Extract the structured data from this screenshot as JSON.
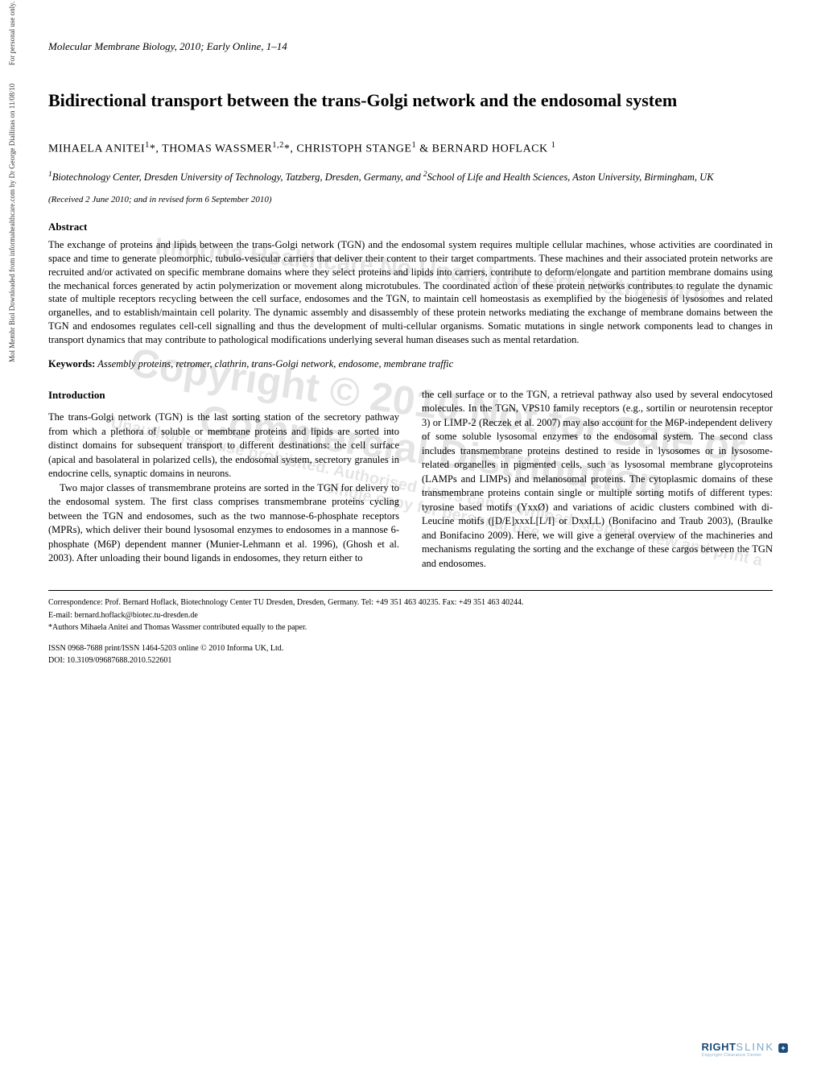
{
  "sidebar": {
    "text": "Mol Membr Biol Downloaded from informahealthcare.com by Dr George Diallinas on 11/08/10          For personal use only."
  },
  "journal_header": "Molecular Membrane Biology, 2010; Early Online, 1–14",
  "title": "Bidirectional transport between the trans-Golgi network and the endosomal system",
  "authors_html": "MIHAELA ANITEI<sup>1</sup>*, THOMAS WASSMER<sup>1,2</sup>*, CHRISTOPH STANGE<sup>1</sup> & BERNARD HOFLACK <sup>1</sup>",
  "affiliations_html": "<sup>1</sup>Biotechnology Center, Dresden University of Technology, Tatzberg, Dresden, Germany, and <sup>2</sup>School of Life and Health Sciences, Aston University, Birmingham, UK",
  "received": "(Received 2 June 2010; and in revised form 6 September 2010)",
  "abstract": {
    "heading": "Abstract",
    "text": "The exchange of proteins and lipids between the trans-Golgi network (TGN) and the endosomal system requires multiple cellular machines, whose activities are coordinated in space and time to generate pleomorphic, tubulo-vesicular carriers that deliver their content to their target compartments. These machines and their associated protein networks are recruited and/or activated on specific membrane domains where they select proteins and lipids into carriers, contribute to deform/elongate and partition membrane domains using the mechanical forces generated by actin polymerization or movement along microtubules. The coordinated action of these protein networks contributes to regulate the dynamic state of multiple receptors recycling between the cell surface, endosomes and the TGN, to maintain cell homeostasis as exemplified by the biogenesis of lysosomes and related organelles, and to establish/maintain cell polarity. The dynamic assembly and disassembly of these protein networks mediating the exchange of membrane domains between the TGN and endosomes regulates cell-cell signalling and thus the development of multi-cellular organisms. Somatic mutations in single network components lead to changes in transport dynamics that may contribute to pathological modifications underlying several human diseases such as mental retardation."
  },
  "keywords": {
    "label": "Keywords:",
    "text": " Assembly proteins, retromer, clathrin, trans-Golgi network, endosome, membrane traffic"
  },
  "introduction": {
    "heading": "Introduction",
    "left_p1": "The trans-Golgi network (TGN) is the last sorting station of the secretory pathway from which a plethora of soluble or membrane proteins and lipids are sorted into distinct domains for subsequent transport to different destinations: the cell surface (apical and basolateral in polarized cells), the endosomal system, secretory granules in endocrine cells, synaptic domains in neurons.",
    "left_p2": "Two major classes of transmembrane proteins are sorted in the TGN for delivery to the endosomal system. The first class comprises transmembrane proteins cycling between the TGN and endosomes, such as the two mannose-6-phosphate receptors (MPRs), which deliver their bound lysosomal enzymes to endosomes in a mannose 6-phosphate (M6P) dependent manner (Munier-Lehmann et al. 1996), (Ghosh et al. 2003). After unloading their bound ligands in endosomes, they return either to",
    "right_p1": "the cell surface or to the TGN, a retrieval pathway also used by several endocytosed molecules. In the TGN, VPS10 family receptors (e.g., sortilin or neurotensin receptor 3) or LIMP-2 (Reczek et al. 2007) may also account for the M6P-independent delivery of some soluble lysosomal enzymes to the endosomal system. The second class includes transmembrane proteins destined to reside in lysosomes or in lysosome-related organelles in pigmented cells, such as lysosomal membrane glycoproteins (LAMPs and LIMPs) and melanosomal proteins. The cytoplasmic domains of these transmembrane proteins contain single or multiple sorting motifs of different types: tyrosine based motifs (YxxØ) and variations of acidic clusters combined with di-Leucine motifs ([D/E]xxxL[L/I] or DxxLL) (Bonifacino and Traub 2003), (Braulke and Bonifacino 2009). Here, we will give a general overview of the machineries and mechanisms regulating the sorting and the exchange of these cargos between the TGN and endosomes."
  },
  "footer": {
    "correspondence": "Correspondence: Prof. Bernard Hoflack, Biotechnology Center TU Dresden, Dresden, Germany. Tel: +49 351 463 40235. Fax: +49 351 463 40244.",
    "email": "E-mail: bernard.hoflack@biotec.tu-dresden.de",
    "equal": "*Authors Mihaela Anitei and Thomas Wassmer contributed equally to the paper.",
    "issn": "ISSN 0968-7688 print/ISSN 1464-5203 online © 2010 Informa UK, Ltd.",
    "doi": "DOI: 10.3109/09687688.2010.522601"
  },
  "rightslink": {
    "right": "RIGHT",
    "link": "SLINK",
    "tagline": "Copyright Clearance Center"
  },
  "watermark": {
    "top": "Informa Healthcare      No Unauthorized Distribution",
    "mid": "Copyright © 2010    Not for Sale or Commercial Distribution",
    "low": "Unauthorised use prohibited. Authorised users can download, display, view and print a single copy for personal use"
  }
}
